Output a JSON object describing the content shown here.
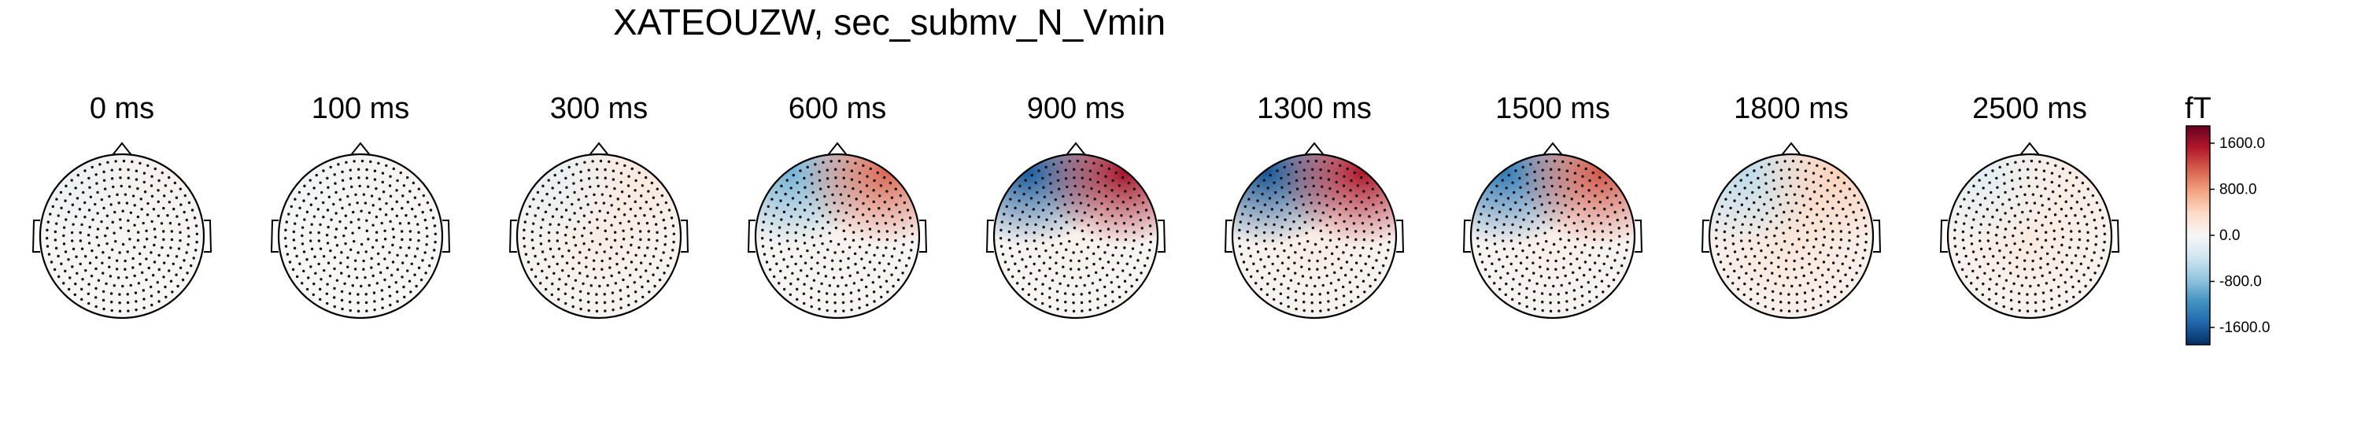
{
  "figure": {
    "title": "XATEOUZW, sec_submv_N_Vmin"
  },
  "chart_data": {
    "type": "heatmap",
    "kind": "topomap-series",
    "title": "XATEOUZW, sec_submv_N_Vmin",
    "unit": "fT",
    "panels": [
      {
        "time": "0 ms",
        "left_peak": -120,
        "right_peak": 90,
        "center": 40,
        "contour": "wavy-center"
      },
      {
        "time": "100 ms",
        "left_peak": -60,
        "right_peak": 60,
        "center": 20,
        "contour": "small-loop"
      },
      {
        "time": "300 ms",
        "left_peak": -150,
        "right_peak": 200,
        "center": 150,
        "contour": "vertical"
      },
      {
        "time": "600 ms",
        "left_peak": -900,
        "right_peak": 1100,
        "center": 80,
        "contour": "frontal"
      },
      {
        "time": "900 ms",
        "left_peak": -1600,
        "right_peak": 1600,
        "center": 100,
        "contour": "frontal"
      },
      {
        "time": "1300 ms",
        "left_peak": -1650,
        "right_peak": 1550,
        "center": 150,
        "contour": "frontal"
      },
      {
        "time": "1500 ms",
        "left_peak": -1350,
        "right_peak": 1200,
        "center": 120,
        "contour": "frontal"
      },
      {
        "time": "1800 ms",
        "left_peak": -500,
        "right_peak": 450,
        "center": 250,
        "contour": "central"
      },
      {
        "time": "2500 ms",
        "left_peak": -200,
        "right_peak": 150,
        "center": 180,
        "contour": "central"
      }
    ],
    "colorbar": {
      "label": "fT",
      "vmin": -1900,
      "vmax": 1900,
      "ticks": [
        "1600.0",
        "800.0",
        "0.0",
        "-800.0",
        "-1600.0"
      ],
      "tick_values": [
        1600,
        800,
        0,
        -800,
        -1600
      ],
      "colormap": "RdBu_r",
      "colors": [
        "#053061",
        "#2166ac",
        "#4393c3",
        "#92c5de",
        "#d1e5f0",
        "#f7f7f7",
        "#fddbc7",
        "#f4a582",
        "#d6604d",
        "#b2182b",
        "#67001f"
      ]
    },
    "grid": false,
    "sensor_markers": true
  }
}
